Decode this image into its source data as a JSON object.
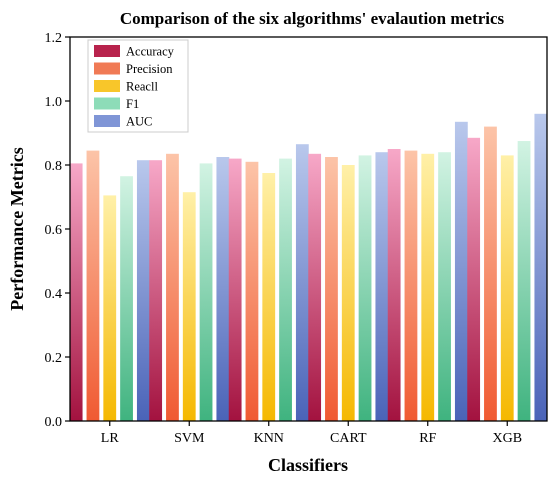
{
  "chart_data": {
    "type": "bar",
    "title": "Comparison of the six algorithms' evalaution metrics",
    "xlabel": "Classifiers",
    "ylabel": "Performance Metrics",
    "ylim": [
      0,
      1.2
    ],
    "yticks": [
      "0.0",
      "0.2",
      "0.4",
      "0.6",
      "0.8",
      "1.0",
      "1.2"
    ],
    "grid": false,
    "legend_position": "top-left",
    "categories": [
      "LR",
      "SVM",
      "KNN",
      "CART",
      "RF",
      "XGB"
    ],
    "series": [
      {
        "name": "Accuracy",
        "values": [
          0.805,
          0.815,
          0.82,
          0.835,
          0.85,
          0.885
        ],
        "color_top": "#f7a8c8",
        "color_bottom": "#a3123f",
        "legend_color": "#b8234d"
      },
      {
        "name": "Precision",
        "values": [
          0.845,
          0.835,
          0.81,
          0.825,
          0.845,
          0.92
        ],
        "color_top": "#fcc4a8",
        "color_bottom": "#f05a32",
        "legend_color": "#f07a55"
      },
      {
        "name": "Reacll",
        "values": [
          0.705,
          0.715,
          0.775,
          0.8,
          0.835,
          0.83
        ],
        "color_top": "#fff0a8",
        "color_bottom": "#f5b800",
        "legend_color": "#f8c62a"
      },
      {
        "name": "F1",
        "values": [
          0.765,
          0.805,
          0.82,
          0.83,
          0.84,
          0.875
        ],
        "color_top": "#d2f3e3",
        "color_bottom": "#3fb37f",
        "legend_color": "#8ddcb8"
      },
      {
        "name": "AUC",
        "values": [
          0.815,
          0.825,
          0.865,
          0.84,
          0.935,
          0.96
        ],
        "color_top": "#b9c8ec",
        "color_bottom": "#4a63b8",
        "legend_color": "#7f95d6"
      }
    ]
  }
}
